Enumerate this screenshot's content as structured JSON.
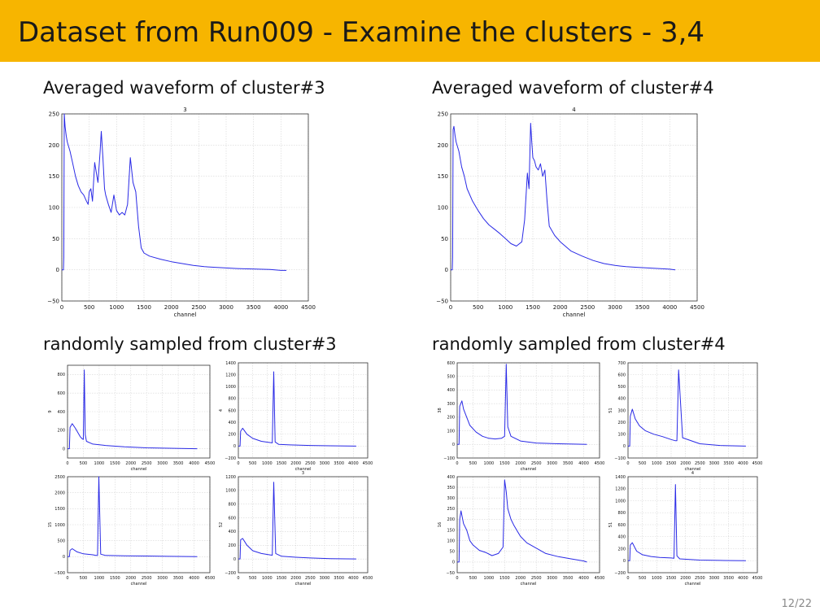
{
  "slide": {
    "title": "Dataset from Run009 - Examine the clusters - 3,4",
    "page_number": "12/22",
    "sections": {
      "avg3": "Averaged waveform of cluster#3",
      "avg4": "Averaged waveform of cluster#4",
      "rand3": "randomly sampled from cluster#3",
      "rand4": "randomly sampled from cluster#4"
    }
  },
  "chart_data": [
    {
      "type": "line",
      "title": "3",
      "xlabel": "channel",
      "ylabel": "",
      "xlim": [
        0,
        4500
      ],
      "ylim": [
        -50,
        250
      ],
      "xticks": [
        0,
        500,
        1000,
        1500,
        2000,
        2500,
        3000,
        3500,
        4000,
        4500
      ],
      "yticks": [
        -50,
        0,
        50,
        100,
        150,
        200,
        250
      ],
      "x": [
        0,
        30,
        35,
        45,
        60,
        80,
        100,
        150,
        200,
        250,
        300,
        350,
        400,
        450,
        480,
        500,
        530,
        560,
        600,
        660,
        700,
        720,
        750,
        780,
        800,
        850,
        900,
        950,
        1000,
        1050,
        1100,
        1150,
        1200,
        1250,
        1300,
        1350,
        1400,
        1450,
        1500,
        1600,
        1800,
        2000,
        2200,
        2400,
        2600,
        2800,
        3000,
        3200,
        3400,
        3600,
        3800,
        4000,
        4100
      ],
      "y": [
        0,
        0,
        20,
        250,
        230,
        215,
        205,
        190,
        170,
        150,
        135,
        125,
        120,
        110,
        105,
        125,
        130,
        110,
        172,
        140,
        190,
        222,
        180,
        130,
        120,
        105,
        92,
        120,
        95,
        88,
        92,
        88,
        105,
        180,
        140,
        125,
        70,
        35,
        27,
        22,
        17,
        13,
        10,
        7,
        5,
        4,
        3,
        2,
        1.5,
        1,
        0.5,
        -1,
        -1
      ]
    },
    {
      "type": "line",
      "title": "4",
      "xlabel": "channel",
      "ylabel": "",
      "xlim": [
        0,
        4500
      ],
      "ylim": [
        -50,
        250
      ],
      "xticks": [
        0,
        500,
        1000,
        1500,
        2000,
        2500,
        3000,
        3500,
        4000,
        4500
      ],
      "yticks": [
        -50,
        0,
        50,
        100,
        150,
        200,
        250
      ],
      "x": [
        0,
        30,
        35,
        45,
        60,
        80,
        100,
        150,
        200,
        250,
        300,
        400,
        500,
        600,
        700,
        800,
        900,
        1000,
        1100,
        1200,
        1300,
        1350,
        1400,
        1430,
        1460,
        1480,
        1500,
        1530,
        1560,
        1600,
        1640,
        1680,
        1720,
        1760,
        1800,
        1900,
        2000,
        2200,
        2400,
        2600,
        2800,
        3000,
        3200,
        3400,
        3600,
        3800,
        4000,
        4100
      ],
      "y": [
        0,
        0,
        20,
        225,
        230,
        215,
        205,
        190,
        165,
        150,
        130,
        110,
        95,
        82,
        72,
        65,
        58,
        50,
        42,
        38,
        45,
        80,
        155,
        130,
        235,
        205,
        180,
        175,
        165,
        160,
        170,
        150,
        160,
        110,
        70,
        55,
        45,
        30,
        22,
        15,
        10,
        7,
        5,
        4,
        3,
        2,
        1,
        0
      ]
    },
    {
      "type": "line",
      "title": "",
      "xlabel": "channel",
      "ylabel": "9",
      "xlim": [
        0,
        4500
      ],
      "ylim": [
        -100,
        900
      ],
      "xticks": [
        0,
        500,
        1000,
        1500,
        2000,
        2500,
        3000,
        3500,
        4000,
        4500
      ],
      "yticks": [
        0,
        200,
        400,
        600,
        800
      ],
      "x": [
        0,
        60,
        80,
        150,
        250,
        400,
        470,
        500,
        530,
        560,
        600,
        800,
        1200,
        1800,
        2500,
        3200,
        4100
      ],
      "y": [
        0,
        0,
        230,
        270,
        220,
        130,
        105,
        100,
        850,
        150,
        80,
        50,
        35,
        20,
        10,
        5,
        0
      ]
    },
    {
      "type": "line",
      "title": "",
      "xlabel": "channel",
      "ylabel": "4",
      "xlim": [
        0,
        4500
      ],
      "ylim": [
        -200,
        1400
      ],
      "xticks": [
        0,
        500,
        1000,
        1500,
        2000,
        2500,
        3000,
        3500,
        4000,
        4500
      ],
      "yticks": [
        -200,
        0,
        200,
        400,
        600,
        800,
        1000,
        1200,
        1400
      ],
      "x": [
        0,
        60,
        80,
        150,
        300,
        500,
        800,
        1100,
        1180,
        1230,
        1280,
        1400,
        1800,
        2500,
        3200,
        4100
      ],
      "y": [
        0,
        0,
        250,
        300,
        200,
        130,
        80,
        60,
        55,
        1250,
        70,
        30,
        20,
        10,
        5,
        0
      ]
    },
    {
      "type": "line",
      "title": "",
      "xlabel": "channel",
      "ylabel": "15",
      "xlim": [
        0,
        4500
      ],
      "ylim": [
        -500,
        2500
      ],
      "xticks": [
        0,
        500,
        1000,
        1500,
        2000,
        2500,
        3000,
        3500,
        4000,
        4500
      ],
      "yticks": [
        -500,
        0,
        500,
        1000,
        1500,
        2000,
        2500
      ],
      "x": [
        0,
        60,
        80,
        150,
        300,
        500,
        800,
        900,
        950,
        990,
        1050,
        1200,
        1800,
        2500,
        3200,
        4100
      ],
      "y": [
        0,
        0,
        200,
        250,
        150,
        90,
        60,
        40,
        40,
        2500,
        80,
        40,
        30,
        20,
        10,
        0
      ]
    },
    {
      "type": "line",
      "title": "3",
      "xlabel": "channel",
      "ylabel": "52",
      "xlim": [
        0,
        4500
      ],
      "ylim": [
        -200,
        1200
      ],
      "xticks": [
        0,
        500,
        1000,
        1500,
        2000,
        2500,
        3000,
        3500,
        4000,
        4500
      ],
      "yticks": [
        -200,
        0,
        200,
        400,
        600,
        800,
        1000,
        1200
      ],
      "x": [
        0,
        60,
        80,
        150,
        300,
        500,
        800,
        1100,
        1180,
        1230,
        1300,
        1500,
        2000,
        2500,
        3200,
        4100
      ],
      "y": [
        0,
        0,
        280,
        300,
        200,
        120,
        80,
        60,
        55,
        1120,
        80,
        40,
        25,
        15,
        5,
        0
      ]
    },
    {
      "type": "line",
      "title": "",
      "xlabel": "channel",
      "ylabel": "38",
      "xlim": [
        0,
        4500
      ],
      "ylim": [
        -100,
        600
      ],
      "xticks": [
        0,
        500,
        1000,
        1500,
        2000,
        2500,
        3000,
        3500,
        4000,
        4500
      ],
      "yticks": [
        -100,
        0,
        100,
        200,
        300,
        400,
        500,
        600
      ],
      "x": [
        0,
        60,
        80,
        150,
        200,
        300,
        400,
        600,
        800,
        1000,
        1200,
        1400,
        1500,
        1550,
        1600,
        1700,
        2000,
        2500,
        3200,
        4100
      ],
      "y": [
        0,
        0,
        280,
        320,
        260,
        200,
        140,
        90,
        60,
        45,
        40,
        45,
        60,
        590,
        130,
        60,
        25,
        10,
        5,
        0
      ]
    },
    {
      "type": "line",
      "title": "",
      "xlabel": "channel",
      "ylabel": "51",
      "xlim": [
        0,
        4500
      ],
      "ylim": [
        -100,
        700
      ],
      "xticks": [
        0,
        500,
        1000,
        1500,
        2000,
        2500,
        3000,
        3500,
        4000,
        4500
      ],
      "yticks": [
        -100,
        0,
        100,
        200,
        300,
        400,
        500,
        600,
        700
      ],
      "x": [
        0,
        60,
        80,
        150,
        250,
        400,
        600,
        900,
        1200,
        1500,
        1650,
        1700,
        1760,
        1900,
        2500,
        3200,
        4100
      ],
      "y": [
        0,
        0,
        250,
        310,
        230,
        170,
        130,
        100,
        80,
        55,
        45,
        45,
        640,
        70,
        20,
        5,
        0
      ]
    },
    {
      "type": "line",
      "title": "",
      "xlabel": "channel",
      "ylabel": "16",
      "xlim": [
        0,
        4500
      ],
      "ylim": [
        -50,
        400
      ],
      "xticks": [
        0,
        500,
        1000,
        1500,
        2000,
        2500,
        3000,
        3500,
        4000,
        4500
      ],
      "yticks": [
        -50,
        0,
        50,
        100,
        150,
        200,
        250,
        300,
        350,
        400
      ],
      "x": [
        0,
        60,
        80,
        120,
        200,
        300,
        400,
        500,
        700,
        900,
        1100,
        1300,
        1450,
        1500,
        1550,
        1600,
        1700,
        1800,
        2000,
        2200,
        2500,
        2800,
        3200,
        3600,
        4000,
        4100
      ],
      "y": [
        0,
        0,
        200,
        240,
        180,
        150,
        100,
        80,
        55,
        45,
        30,
        40,
        70,
        385,
        330,
        250,
        200,
        170,
        120,
        90,
        65,
        40,
        25,
        15,
        5,
        0
      ]
    },
    {
      "type": "line",
      "title": "4",
      "xlabel": "channel",
      "ylabel": "51",
      "xlim": [
        0,
        4500
      ],
      "ylim": [
        -200,
        1400
      ],
      "xticks": [
        0,
        500,
        1000,
        1500,
        2000,
        2500,
        3000,
        3500,
        4000,
        4500
      ],
      "yticks": [
        -200,
        0,
        200,
        400,
        600,
        800,
        1000,
        1200,
        1400
      ],
      "x": [
        0,
        60,
        80,
        150,
        300,
        500,
        800,
        1100,
        1500,
        1600,
        1650,
        1700,
        1800,
        2500,
        3200,
        4100
      ],
      "y": [
        0,
        0,
        260,
        300,
        160,
        100,
        70,
        55,
        45,
        40,
        1270,
        80,
        30,
        10,
        5,
        0
      ]
    }
  ]
}
